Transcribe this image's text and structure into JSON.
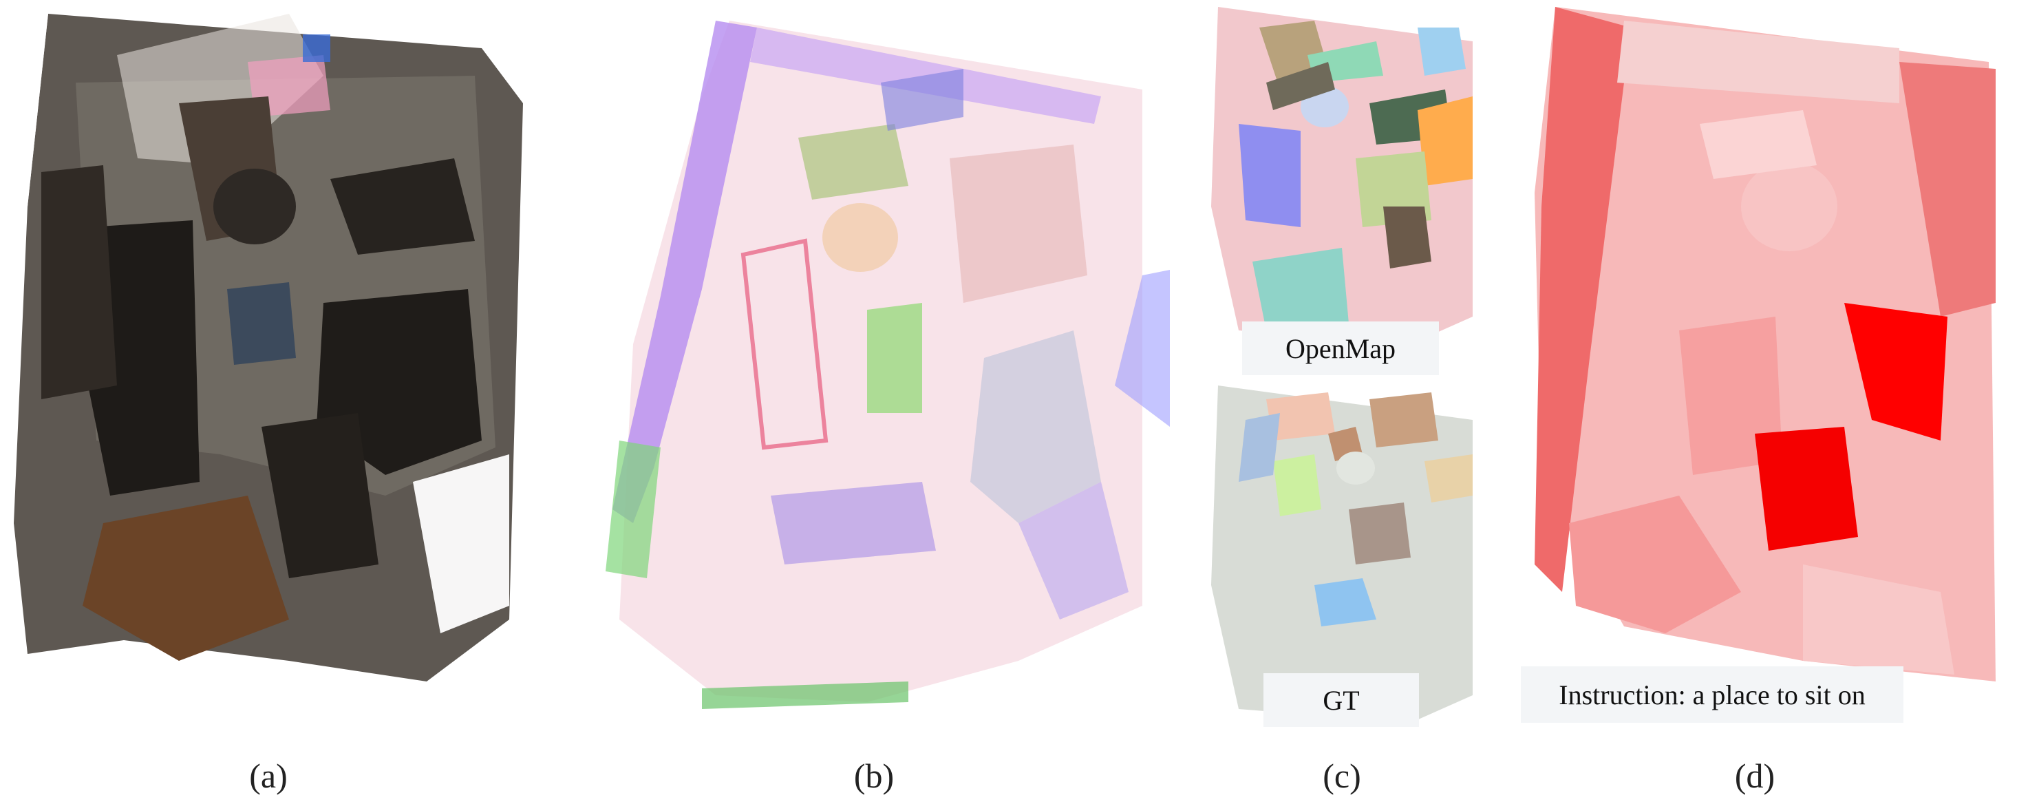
{
  "figure": {
    "panels": [
      {
        "id": "a",
        "caption": "(a)"
      },
      {
        "id": "b",
        "caption": "(b)"
      },
      {
        "id": "c",
        "caption": "(c)",
        "tags": {
          "top": "OpenMap",
          "bottom": "GT"
        }
      },
      {
        "id": "d",
        "caption": "(d)",
        "tag": "Instruction: a place to sit on"
      }
    ]
  },
  "colors": {
    "scan_dark": "#2b2622",
    "scan_floor": "#6e6860",
    "scan_wood": "#5a3a22",
    "points_pink": "#f2b8c8",
    "points_purple": "#b58cf0",
    "points_green": "#7fd67a",
    "seg_bg": "#f2c8cc",
    "gt_bg": "#d8dcd6",
    "heat_light": "#f7a9a9",
    "heat_mid": "#ef6a6a",
    "heat_strong": "#ff0000"
  }
}
